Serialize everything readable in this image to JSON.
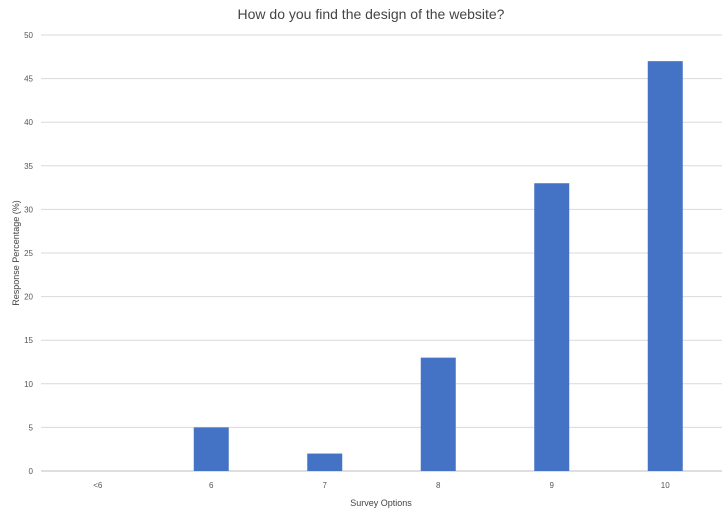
{
  "chart_data": {
    "type": "bar",
    "title": "How do you find the design of the website?",
    "xlabel": "Survey Options",
    "ylabel": "Response Percentage (%)",
    "categories": [
      "<6",
      "6",
      "7",
      "8",
      "9",
      "10"
    ],
    "values": [
      0,
      5,
      2,
      13,
      33,
      47
    ],
    "ylim": [
      0,
      50
    ],
    "yticks": [
      0,
      5,
      10,
      15,
      20,
      25,
      30,
      35,
      40,
      45,
      50
    ],
    "grid": true,
    "legend": "none",
    "bar_color": "#4472c4"
  }
}
